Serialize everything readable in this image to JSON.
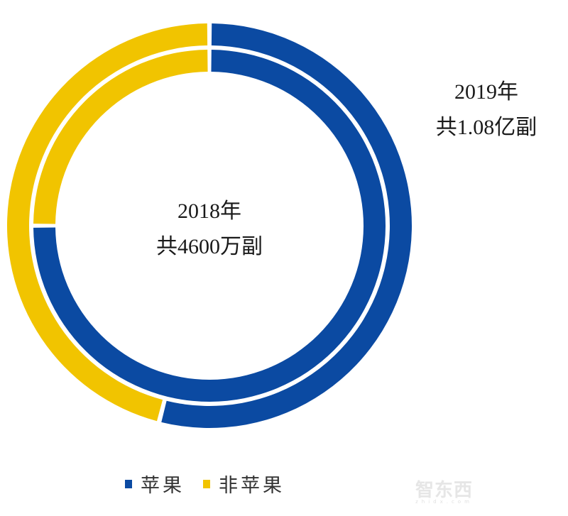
{
  "chart_data": {
    "type": "pie",
    "subtype": "nested-donut",
    "title": "",
    "series": [
      {
        "name": "2018年",
        "ring": "inner",
        "total_label": "共4600万副",
        "categories": [
          "苹果",
          "非苹果"
        ],
        "values": [
          75,
          25
        ],
        "unit": "%"
      },
      {
        "name": "2019年",
        "ring": "outer",
        "total_label": "共1.08亿副",
        "categories": [
          "苹果",
          "非苹果"
        ],
        "values": [
          54,
          46
        ],
        "unit": "%"
      }
    ],
    "legend": [
      "苹果",
      "非苹果"
    ],
    "legend_position": "bottom",
    "colors": {
      "苹果": "#0b4aa2",
      "非苹果": "#f1c400"
    }
  },
  "labels": {
    "inner_year": "2018年",
    "inner_total": "共4600万副",
    "outer_year": "2019年",
    "outer_total": "共1.08亿副"
  },
  "legend": {
    "items": [
      {
        "label": "苹果",
        "color": "#0b4aa2"
      },
      {
        "label": "非苹果",
        "color": "#f1c400"
      }
    ]
  },
  "watermark": {
    "text": "智东西",
    "sub": "zhidx.com"
  }
}
